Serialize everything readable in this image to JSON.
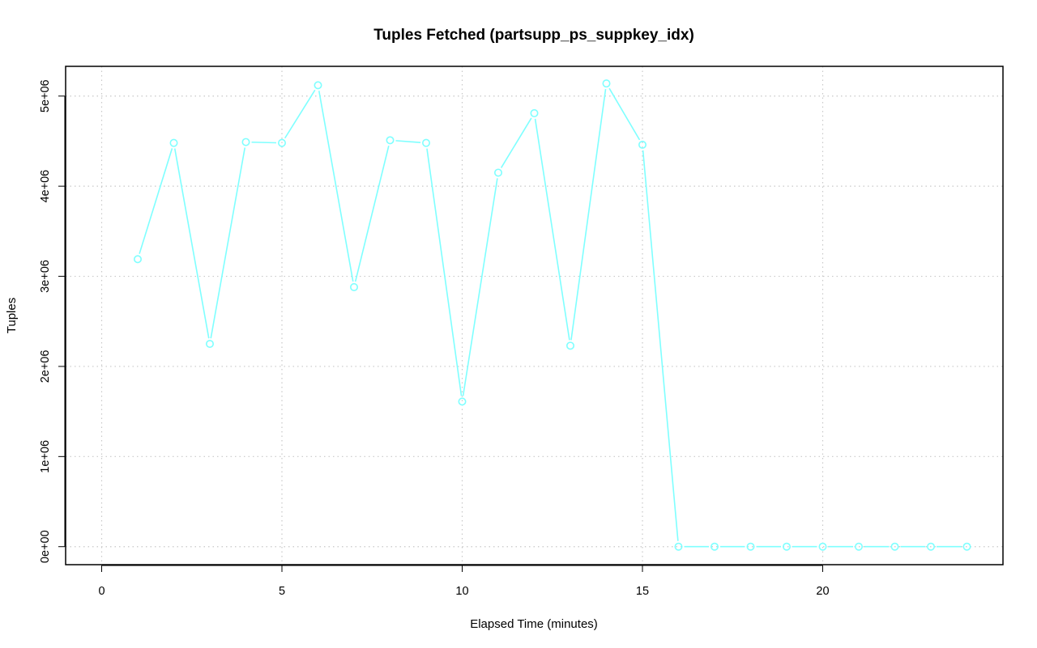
{
  "chart_data": {
    "type": "line",
    "title": "Tuples Fetched (partsupp_ps_suppkey_idx)",
    "xlabel": "Elapsed Time (minutes)",
    "ylabel": "Tuples",
    "xlim": [
      -1,
      25
    ],
    "ylim": [
      -200000,
      5330000
    ],
    "x_ticks": [
      0,
      5,
      10,
      15,
      20
    ],
    "x_tick_labels": [
      "0",
      "5",
      "10",
      "15",
      "20"
    ],
    "y_ticks": [
      0,
      1000000,
      2000000,
      3000000,
      4000000,
      5000000
    ],
    "y_tick_labels": [
      "0e+00",
      "1e+06",
      "2e+06",
      "3e+06",
      "4e+06",
      "5e+06"
    ],
    "grid": true,
    "series": [
      {
        "color": "#7FFFFF",
        "marker": "open-circle",
        "x": [
          1,
          2,
          3,
          4,
          5,
          6,
          7,
          8,
          9,
          10,
          11,
          12,
          13,
          14,
          15,
          16,
          17,
          18,
          19,
          20,
          21,
          22,
          23,
          24
        ],
        "values": [
          3190000,
          4480000,
          2250000,
          4490000,
          4480000,
          5120000,
          2880000,
          4510000,
          4480000,
          1610000,
          4150000,
          4810000,
          2230000,
          5140000,
          4460000,
          0,
          0,
          0,
          0,
          0,
          0,
          0,
          0,
          0
        ]
      }
    ]
  }
}
